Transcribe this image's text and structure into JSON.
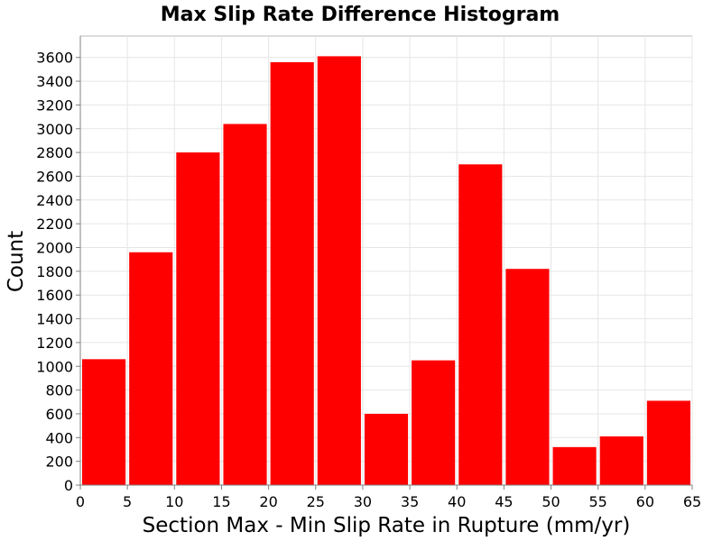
{
  "chart_data": {
    "type": "bar",
    "title": "Max Slip Rate Difference Histogram",
    "xlabel": "Section Max - Min Slip Rate in Rupture (mm/yr)",
    "ylabel": "Count",
    "xlim": [
      0,
      65
    ],
    "ylim": [
      0,
      3780
    ],
    "grid": true,
    "bar_color": "#ff0000",
    "bins": [
      {
        "x0": 0,
        "x1": 5,
        "value": 1060
      },
      {
        "x0": 5,
        "x1": 10,
        "value": 1960
      },
      {
        "x0": 10,
        "x1": 15,
        "value": 2800
      },
      {
        "x0": 15,
        "x1": 20,
        "value": 3040
      },
      {
        "x0": 20,
        "x1": 25,
        "value": 3560
      },
      {
        "x0": 25,
        "x1": 30,
        "value": 3610
      },
      {
        "x0": 30,
        "x1": 35,
        "value": 600
      },
      {
        "x0": 35,
        "x1": 40,
        "value": 1050
      },
      {
        "x0": 40,
        "x1": 45,
        "value": 2700
      },
      {
        "x0": 45,
        "x1": 50,
        "value": 1820
      },
      {
        "x0": 50,
        "x1": 55,
        "value": 320
      },
      {
        "x0": 55,
        "x1": 60,
        "value": 410
      },
      {
        "x0": 60,
        "x1": 65,
        "value": 710
      }
    ],
    "x_ticks": [
      "0",
      "5",
      "10",
      "15",
      "20",
      "25",
      "30",
      "35",
      "40",
      "45",
      "50",
      "55",
      "60",
      "65"
    ],
    "y_ticks": [
      "0",
      "200",
      "400",
      "600",
      "800",
      "1000",
      "1200",
      "1400",
      "1600",
      "1800",
      "2000",
      "2200",
      "2400",
      "2600",
      "2800",
      "3000",
      "3200",
      "3400",
      "3600"
    ]
  }
}
